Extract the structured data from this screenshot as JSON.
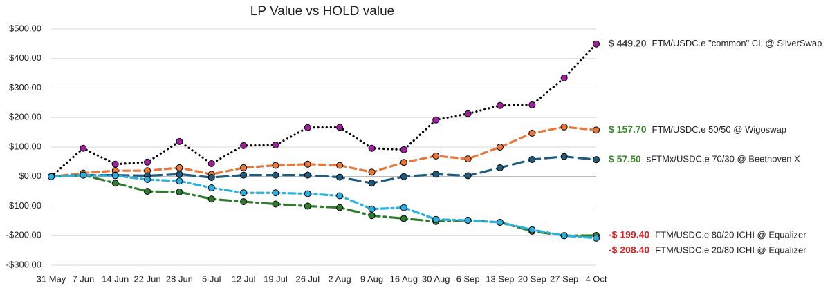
{
  "chart_data": {
    "type": "line",
    "title": "LP Value vs HOLD value",
    "categories": [
      "31 May",
      "7 Jun",
      "14 Jun",
      "22 Jun",
      "28 Jun",
      "5 Jul",
      "12 Jul",
      "19 Jul",
      "26 Jul",
      "2 Aug",
      "9 Aug",
      "16 Aug",
      "30 Aug",
      "6 Sep",
      "13 Sep",
      "20 Sep",
      "27 Sep",
      "4 Oct"
    ],
    "ylim": [
      -300,
      500
    ],
    "yticks": [
      {
        "value": 500,
        "label": "$500.00"
      },
      {
        "value": 400,
        "label": "$400.00"
      },
      {
        "value": 300,
        "label": "$300.00"
      },
      {
        "value": 200,
        "label": "$200.00"
      },
      {
        "value": 100,
        "label": "$100.00"
      },
      {
        "value": 0,
        "label": "$0.00"
      },
      {
        "value": -100,
        "label": "-$100.00"
      },
      {
        "value": -200,
        "label": "-$200.00"
      },
      {
        "value": -300,
        "label": "-$300.00"
      }
    ],
    "grid": true,
    "series": [
      {
        "name": "FTM/USDC.e \"common\" CL @ SilverSwap",
        "color": "#a020a0",
        "line_color": "#000000",
        "dash": "dotted",
        "end_label": "$ 449.20",
        "end_label_color": "#404040",
        "values": [
          0,
          96,
          42,
          49,
          119,
          44,
          105,
          107,
          166,
          167,
          96,
          91,
          192,
          213,
          241,
          243,
          334,
          449.2
        ]
      },
      {
        "name": "FTM/USDC.e 50/50 @ Wigoswap",
        "color": "#e9773a",
        "line_color": "#e9773a",
        "dash": "dashed",
        "end_label": "$ 157.70",
        "end_label_color": "#3a8a2a",
        "values": [
          0,
          12,
          20,
          20,
          30,
          8,
          30,
          38,
          42,
          38,
          15,
          48,
          70,
          60,
          100,
          147,
          168,
          157.7
        ]
      },
      {
        "name": "sFTMx/USDC.e 70/30 @ Beethoven X",
        "color": "#1f5c7f",
        "line_color": "#1f5c7f",
        "dash": "long-dash",
        "end_label": "$ 57.50",
        "end_label_color": "#3a8a2a",
        "values": [
          0,
          5,
          5,
          3,
          8,
          -3,
          5,
          5,
          5,
          -2,
          -22,
          0,
          8,
          3,
          30,
          58,
          68,
          57.5
        ]
      },
      {
        "name": "FTM/USDC.e 80/20 ICHI @ Equalizer",
        "color": "#2e7d2e",
        "line_color": "#2e7d2e",
        "dash": "long-dash-dot",
        "end_label": "-$ 199.40",
        "end_label_color": "#e02020",
        "values": [
          0,
          5,
          -22,
          -50,
          -52,
          -76,
          -85,
          -93,
          -100,
          -105,
          -132,
          -142,
          -152,
          -148,
          -155,
          -185,
          -200,
          -199.4
        ]
      },
      {
        "name": "FTM/USDC.e 20/80 ICHI @ Equalizer",
        "color": "#2bb0e0",
        "line_color": "#2bb0e0",
        "dash": "dash-dot",
        "end_label": "-$ 208.40",
        "end_label_color": "#e02020",
        "values": [
          0,
          5,
          3,
          -10,
          -15,
          -38,
          -55,
          -55,
          -58,
          -65,
          -110,
          -105,
          -145,
          -148,
          -155,
          -180,
          -200,
          -208.4
        ]
      }
    ]
  }
}
